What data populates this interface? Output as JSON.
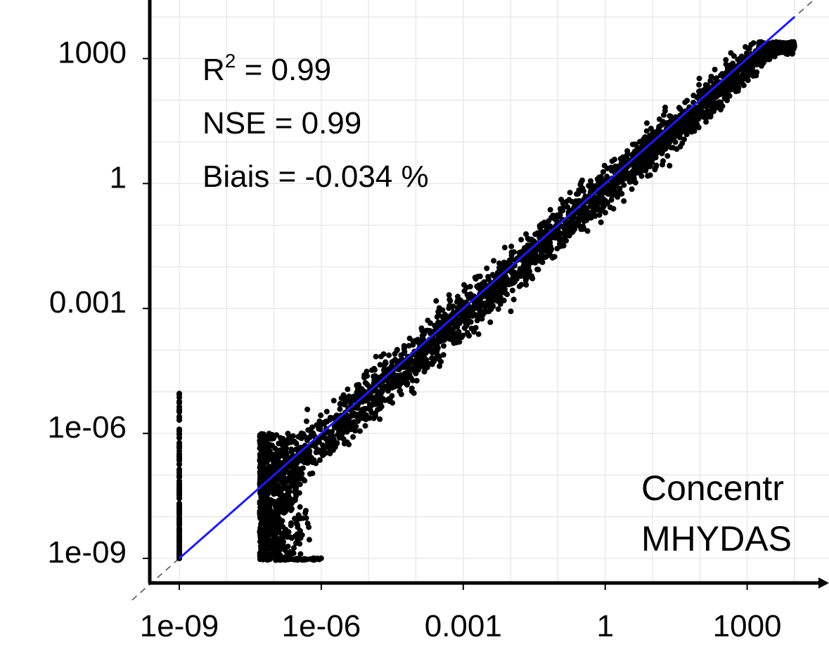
{
  "chart_data": {
    "type": "scatter",
    "x_scale": "log",
    "y_scale": "log",
    "x_ticks": [
      "1e-09",
      "1e-06",
      "0.001",
      "1",
      "1000"
    ],
    "y_ticks": [
      "1000",
      "1",
      "0.001",
      "1e-06",
      "1e-09"
    ],
    "xlim": [
      "1e-09",
      "1e+05"
    ],
    "ylim": [
      "1e-09",
      "1e+05"
    ],
    "grid": true,
    "stats": {
      "r2_label": "R",
      "r2_sup": "2",
      "r2_value": " = 0.99",
      "nse": "NSE = 0.99",
      "bias": "Biais = -0.034 %"
    },
    "corner_text": [
      "Concentr",
      "MHYDAS"
    ],
    "reference_line": {
      "style": "dashed",
      "color": "#555555",
      "from": [
        "1e-10",
        "1e-10"
      ],
      "to": [
        "1e+05",
        "1e+05"
      ]
    },
    "fit_line": {
      "color": "#1a1aff",
      "from": [
        "1e-09",
        "1e-09"
      ],
      "to": [
        "1e+04",
        "1e+04"
      ]
    },
    "point_color": "#000000",
    "point_clusters": [
      {
        "name": "main-cloud",
        "x_range": [
          "5e-08",
          "1e+04"
        ],
        "y_around_x": true,
        "spread_decades": 1.2
      },
      {
        "name": "vertical-band-1e-09",
        "x": "1e-09",
        "y_range": [
          "1e-09",
          "1e-05"
        ]
      },
      {
        "name": "vertical-band-5e-08",
        "x": "5e-08",
        "y_range": [
          "1e-09",
          "1e-06"
        ]
      },
      {
        "name": "floor-row",
        "x_range": [
          "5e-08",
          "1e-06"
        ],
        "y": "1e-10"
      }
    ]
  }
}
